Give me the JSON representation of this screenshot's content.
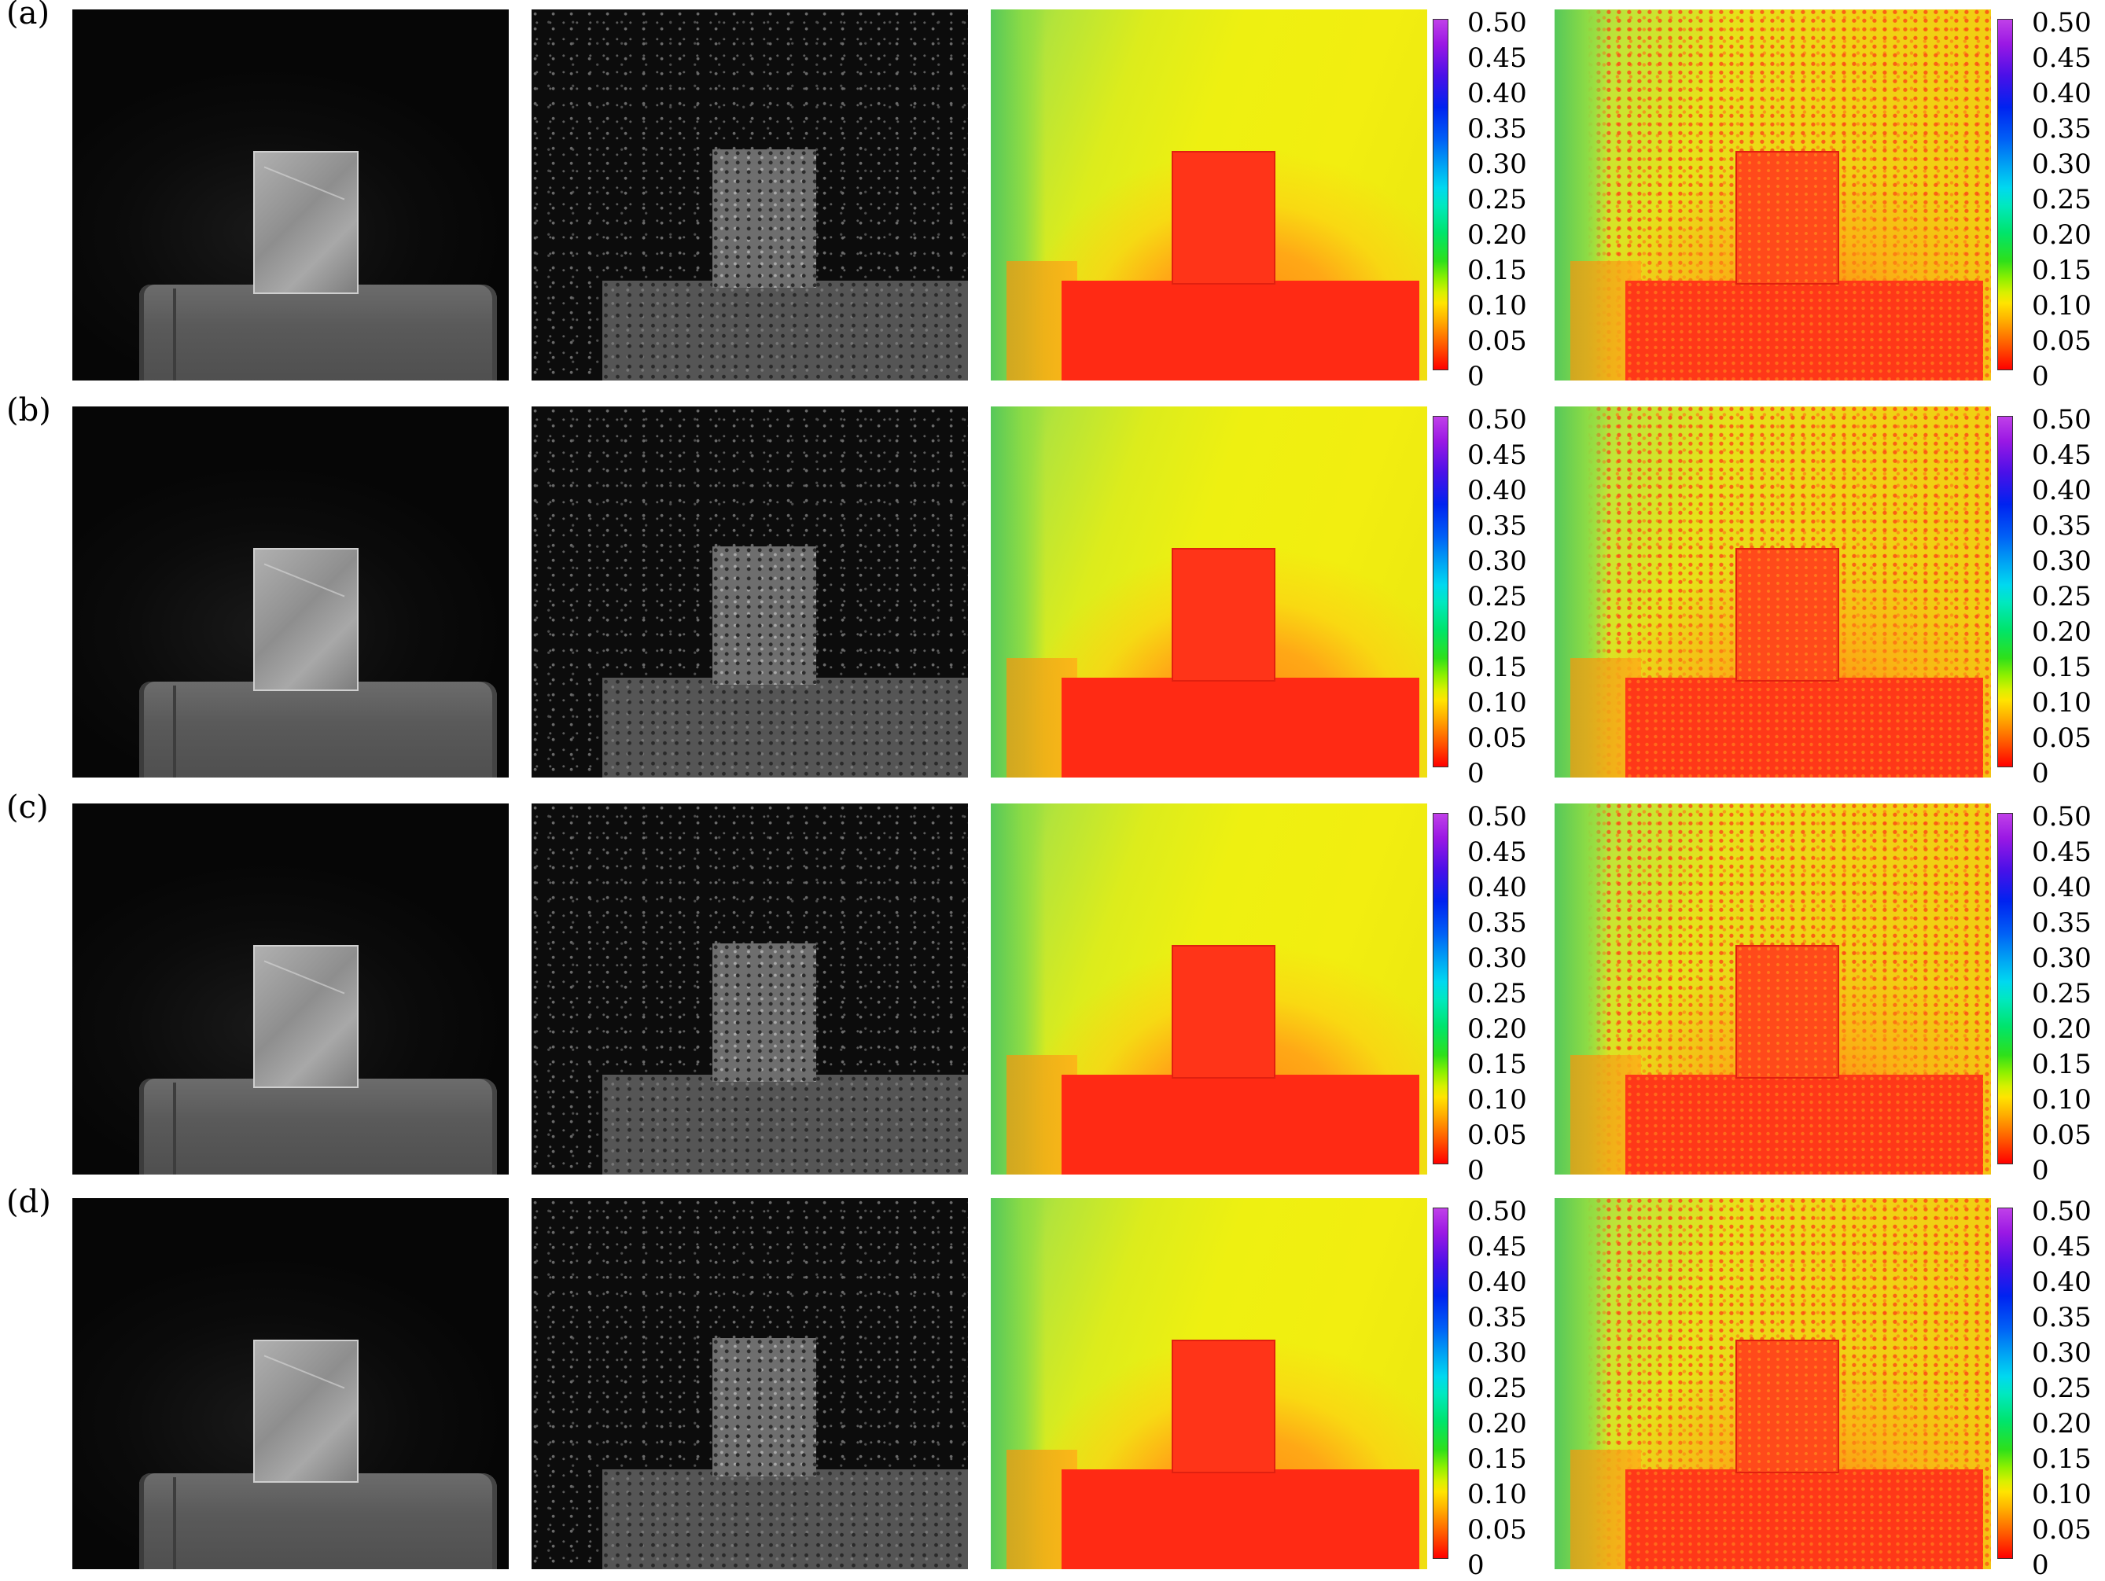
{
  "rows": [
    {
      "label": "(a)"
    },
    {
      "label": "(b)"
    },
    {
      "label": "(c)"
    },
    {
      "label": "(d)"
    }
  ],
  "colorbar": {
    "ticks": [
      "0.50",
      "0.45",
      "0.40",
      "0.35",
      "0.30",
      "0.25",
      "0.20",
      "0.15",
      "0.10",
      "0.05",
      "0"
    ],
    "range": [
      0,
      0.5
    ],
    "colormap": "jet-like (red low → yellow → green → cyan → blue → violet high)"
  },
  "colors": {
    "low": "#ff2a14",
    "mid": "#eef011",
    "high": "#c040e8"
  }
}
